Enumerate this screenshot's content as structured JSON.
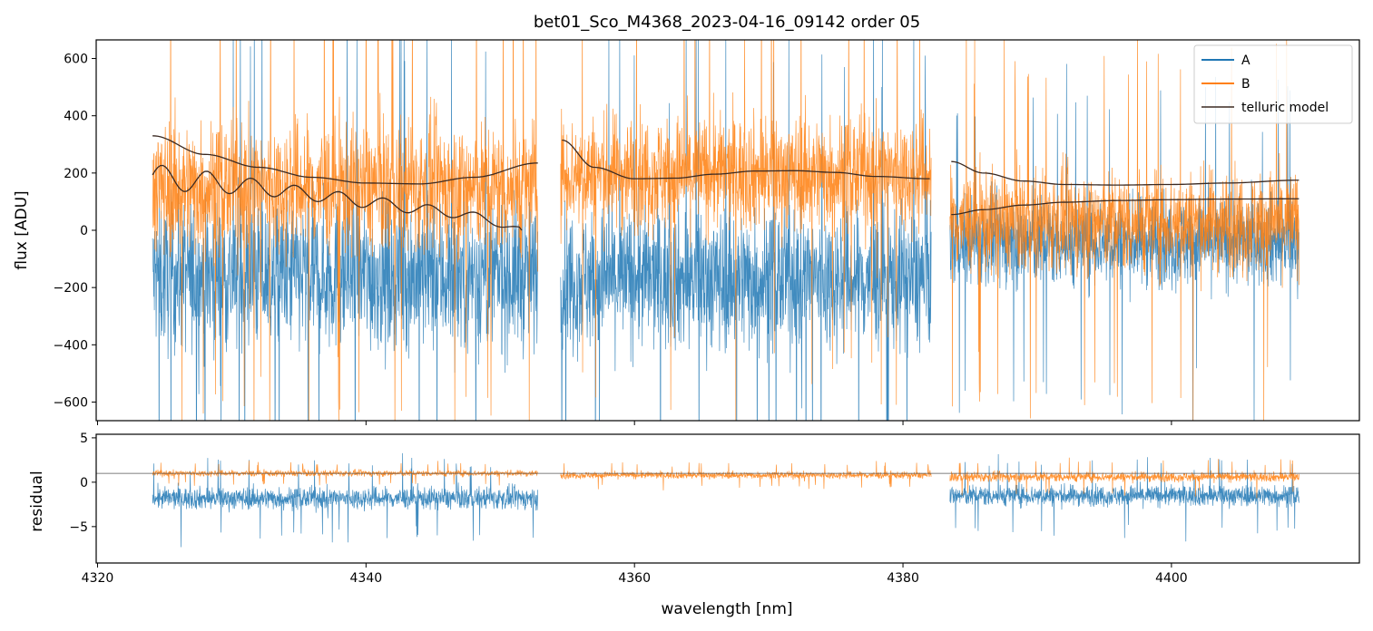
{
  "figure_title": "bet01_Sco_M4368_2023-04-16_09142  order 05",
  "colors": {
    "series_a": "#1f77b4",
    "series_b": "#ff7f0e",
    "telluric": "#3b2a22",
    "residual_ref": "#555555"
  },
  "chart_data": [
    {
      "type": "line",
      "panel": "flux",
      "title": "bet01_Sco_M4368_2023-04-16_09142  order 05",
      "xlabel": "wavelength [nm]",
      "ylabel": "flux [ADU]",
      "xlim": [
        4319.9,
        4414.0
      ],
      "ylim": [
        -665,
        665
      ],
      "yticks": [
        -600,
        -400,
        -200,
        0,
        200,
        400,
        600
      ],
      "ytick_labels": [
        "−600",
        "−400",
        "−200",
        "0",
        "200",
        "400",
        "600"
      ],
      "xticks": [
        4320,
        4340,
        4360,
        4380,
        4400
      ],
      "legend": {
        "position": "top-right",
        "entries": [
          "A",
          "B",
          "telluric model"
        ]
      },
      "segments": [
        {
          "x_start": 4324.1,
          "x_end": 4352.8,
          "a_median": -160,
          "a_spread": 340,
          "b_median": 150,
          "b_spread": 300
        },
        {
          "x_start": 4354.5,
          "x_end": 4382.1,
          "a_median": -170,
          "a_spread": 320,
          "b_median": 200,
          "b_spread": 260
        },
        {
          "x_start": 4383.5,
          "x_end": 4409.5,
          "a_median": -40,
          "a_spread": 200,
          "b_median": 30,
          "b_spread": 230
        }
      ],
      "series": [
        {
          "name": "telluric model",
          "x": [
            4324.1,
            4328.0,
            4332.0,
            4336.0,
            4340.0,
            4344.0,
            4348.0,
            4352.8
          ],
          "values": [
            330,
            265,
            220,
            185,
            165,
            162,
            185,
            235
          ]
        },
        {
          "name": "telluric model",
          "x": [
            4324.1,
            4328.0,
            4332.0,
            4336.0,
            4340.0,
            4344.0,
            4348.0,
            4351.6
          ],
          "values": [
            185,
            170,
            150,
            125,
            100,
            75,
            50,
            0
          ]
        },
        {
          "name": "telluric model",
          "x": [
            4354.6,
            4357.0,
            4360.0,
            4363.0,
            4366.0,
            4369.0,
            4372.0,
            4375.0,
            4378.0,
            4382.0
          ],
          "values": [
            315,
            220,
            180,
            182,
            196,
            207,
            208,
            202,
            188,
            180
          ]
        },
        {
          "name": "telluric model",
          "x": [
            4383.6,
            4386.0,
            4389.0,
            4392.0,
            4396.0,
            4400.0,
            4404.0,
            4409.5
          ],
          "values": [
            240,
            200,
            172,
            160,
            158,
            160,
            165,
            175
          ]
        },
        {
          "name": "telluric model",
          "x": [
            4383.6,
            4386.0,
            4389.0,
            4392.0,
            4396.0,
            4400.0,
            4404.0,
            4409.5
          ],
          "values": [
            55,
            72,
            88,
            98,
            104,
            107,
            109,
            110
          ]
        }
      ]
    },
    {
      "type": "line",
      "panel": "residual",
      "xlabel": "wavelength [nm]",
      "ylabel": "residual",
      "xlim": [
        4319.9,
        4414.0
      ],
      "ylim": [
        -9.1,
        5.4
      ],
      "yticks": [
        -5,
        0,
        5
      ],
      "ytick_labels": [
        "−5",
        "0",
        "5"
      ],
      "xticks": [
        4320,
        4340,
        4360,
        4380,
        4400
      ],
      "xtick_labels": [
        "4320",
        "4340",
        "4360",
        "4380",
        "4400"
      ],
      "reference_line": 1.0,
      "segments": [
        {
          "x_start": 4324.1,
          "x_end": 4352.8,
          "a_median": -1.8,
          "a_spread": 1.6,
          "b_median": 1.0,
          "b_spread": 0.45
        },
        {
          "x_start": 4354.5,
          "x_end": 4382.1,
          "a_median": null,
          "a_spread": null,
          "b_median": 0.8,
          "b_spread": 0.5
        },
        {
          "x_start": 4383.5,
          "x_end": 4409.5,
          "a_median": -1.5,
          "a_spread": 1.5,
          "b_median": 0.6,
          "b_spread": 0.7
        }
      ]
    }
  ]
}
